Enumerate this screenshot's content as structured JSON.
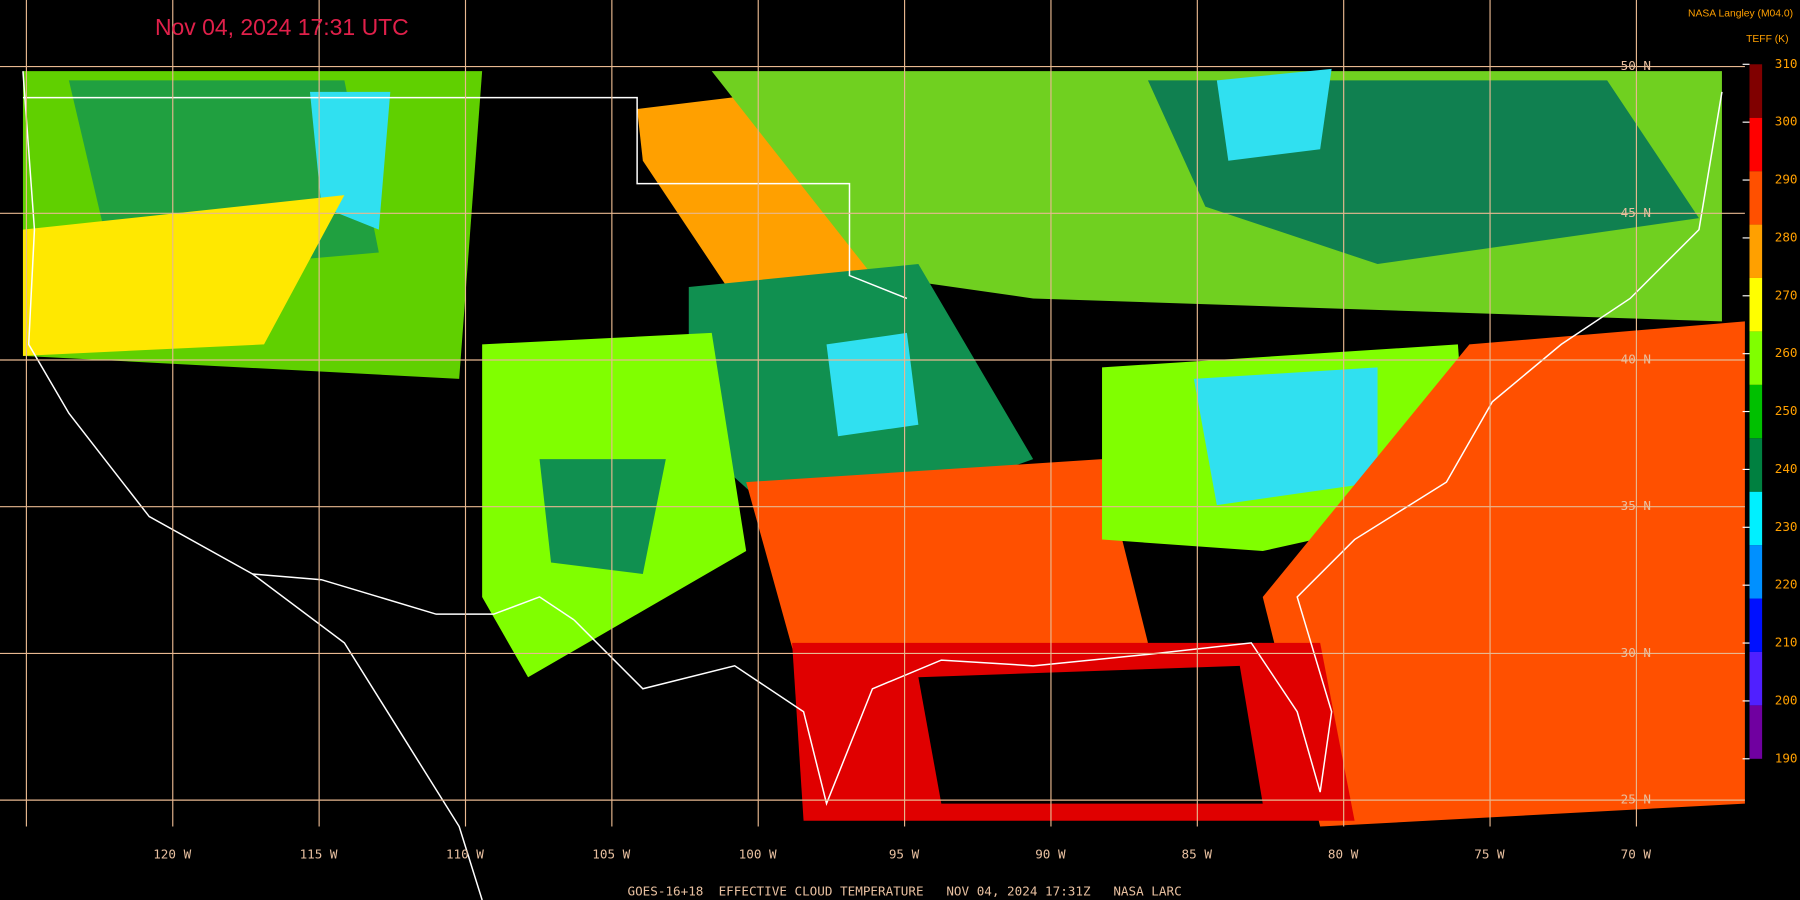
{
  "header": {
    "timestamp": "Nov 04, 2024 17:31 UTC",
    "source": "NASA Langley (M04.0)",
    "units": "TEFF (K)"
  },
  "footer": "GOES-16+18  EFFECTIVE CLOUD TEMPERATURE   NOV 04, 2024 17:31Z   NASA LARC",
  "lat_labels": [
    "50 N",
    "45 N",
    "40 N",
    "35 N",
    "30 N",
    "25 N"
  ],
  "lon_labels": [
    "120 W",
    "115 W",
    "110 W",
    "105 W",
    "100 W",
    "95 W",
    "90 W",
    "85 W",
    "80 W",
    "75 W",
    "70 W"
  ],
  "colorbar": {
    "ticks": [
      310,
      300,
      290,
      280,
      270,
      260,
      250,
      240,
      230,
      220,
      210,
      200,
      190
    ],
    "range": [
      190,
      310
    ],
    "colors": [
      "#7000a0",
      "#5020ff",
      "#0010ff",
      "#0090ff",
      "#00f0ff",
      "#008040",
      "#00c000",
      "#80ff00",
      "#ffff00",
      "#ffa000",
      "#ff5000",
      "#ff0000",
      "#800000"
    ]
  }
}
